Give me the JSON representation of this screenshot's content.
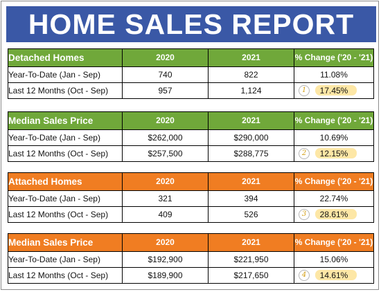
{
  "title": "HOME SALES REPORT",
  "colors": {
    "banner": "#3a58a6",
    "green_header": "#70a83a",
    "orange_header": "#f07d22",
    "highlight": "#fde7a6"
  },
  "sections": [
    {
      "header": {
        "label": "Detached Homes",
        "col1": "2020",
        "col2": "2021",
        "col3": "% Change ('20 - '21)"
      },
      "rows": [
        {
          "label": "Year-To-Date (Jan - Sep)",
          "v2020": "740",
          "v2021": "822",
          "change": "11.08%"
        },
        {
          "label": "Last 12 Months (Oct - Sep)",
          "v2020": "957",
          "v2021": "1,124",
          "change": "17.45%",
          "badge": "1"
        }
      ]
    },
    {
      "header": {
        "label": "Median Sales Price",
        "col1": "2020",
        "col2": "2021",
        "col3": "% Change ('20 - '21)"
      },
      "rows": [
        {
          "label": "Year-To-Date (Jan - Sep)",
          "v2020": "$262,000",
          "v2021": "$290,000",
          "change": "10.69%"
        },
        {
          "label": "Last 12 Months (Oct - Sep)",
          "v2020": "$257,500",
          "v2021": "$288,775",
          "change": "12.15%",
          "badge": "2"
        }
      ]
    },
    {
      "header": {
        "label": "Attached Homes",
        "col1": "2020",
        "col2": "2021",
        "col3": "% Change ('20 - '21)"
      },
      "rows": [
        {
          "label": "Year-To-Date (Jan - Sep)",
          "v2020": "321",
          "v2021": "394",
          "change": "22.74%"
        },
        {
          "label": "Last 12 Months (Oct - Sep)",
          "v2020": "409",
          "v2021": "526",
          "change": "28.61%",
          "badge": "3"
        }
      ]
    },
    {
      "header": {
        "label": "Median Sales Price",
        "col1": "2020",
        "col2": "2021",
        "col3": "% Change ('20 - '21)"
      },
      "rows": [
        {
          "label": "Year-To-Date (Jan - Sep)",
          "v2020": "$192,900",
          "v2021": "$221,950",
          "change": "15.06%"
        },
        {
          "label": "Last 12 Months (Oct - Sep)",
          "v2020": "$189,900",
          "v2021": "$217,650",
          "change": "14.61%",
          "badge": "4"
        }
      ]
    }
  ]
}
